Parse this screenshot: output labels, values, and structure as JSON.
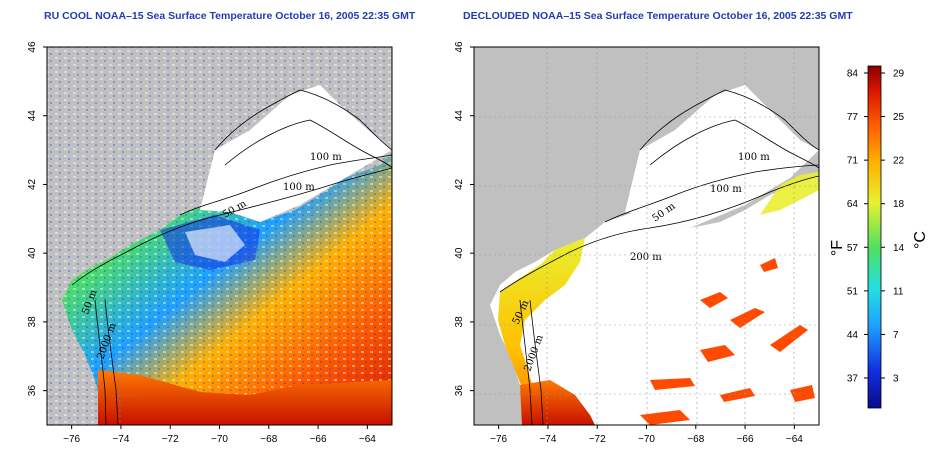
{
  "panels": [
    {
      "title": "RU COOL NOAA–15 Sea Surface Temperature October 16, 2005 22:35 GMT",
      "contour_labels": [
        "100 m",
        "100 m",
        "50 m",
        "50 m",
        "2000 m"
      ]
    },
    {
      "title": "DECLOUDED NOAA–15 Sea Surface Temperature October 16, 2005 22:35 GMT",
      "contour_labels": [
        "100 m",
        "100 m",
        "50 m",
        "200 m",
        "50 m",
        "2000 m"
      ]
    }
  ],
  "axes": {
    "x_ticks": [
      "−76",
      "−74",
      "−72",
      "−70",
      "−68",
      "−66",
      "−64"
    ],
    "y_ticks": [
      "46",
      "44",
      "42",
      "40",
      "38",
      "36"
    ],
    "x_range": [
      -77,
      -63
    ],
    "y_range": [
      35,
      46
    ]
  },
  "colorbar": {
    "fahrenheit_label": "°F",
    "celsius_label": "°C",
    "fahrenheit_ticks": [
      "84",
      "77",
      "71",
      "64",
      "57",
      "51",
      "44",
      "37"
    ],
    "celsius_ticks": [
      "29",
      "25",
      "22",
      "18",
      "14",
      "11",
      "7",
      "3"
    ],
    "colors": [
      "#0a0a8c",
      "#1030e0",
      "#1fa0ff",
      "#22e0e0",
      "#50e060",
      "#e8f030",
      "#ffb000",
      "#ff5a00",
      "#d81400",
      "#8a0000"
    ]
  },
  "colors": {
    "land": "#c0c0c0",
    "cloud": "#ffffff",
    "title": "#1f3db8"
  }
}
